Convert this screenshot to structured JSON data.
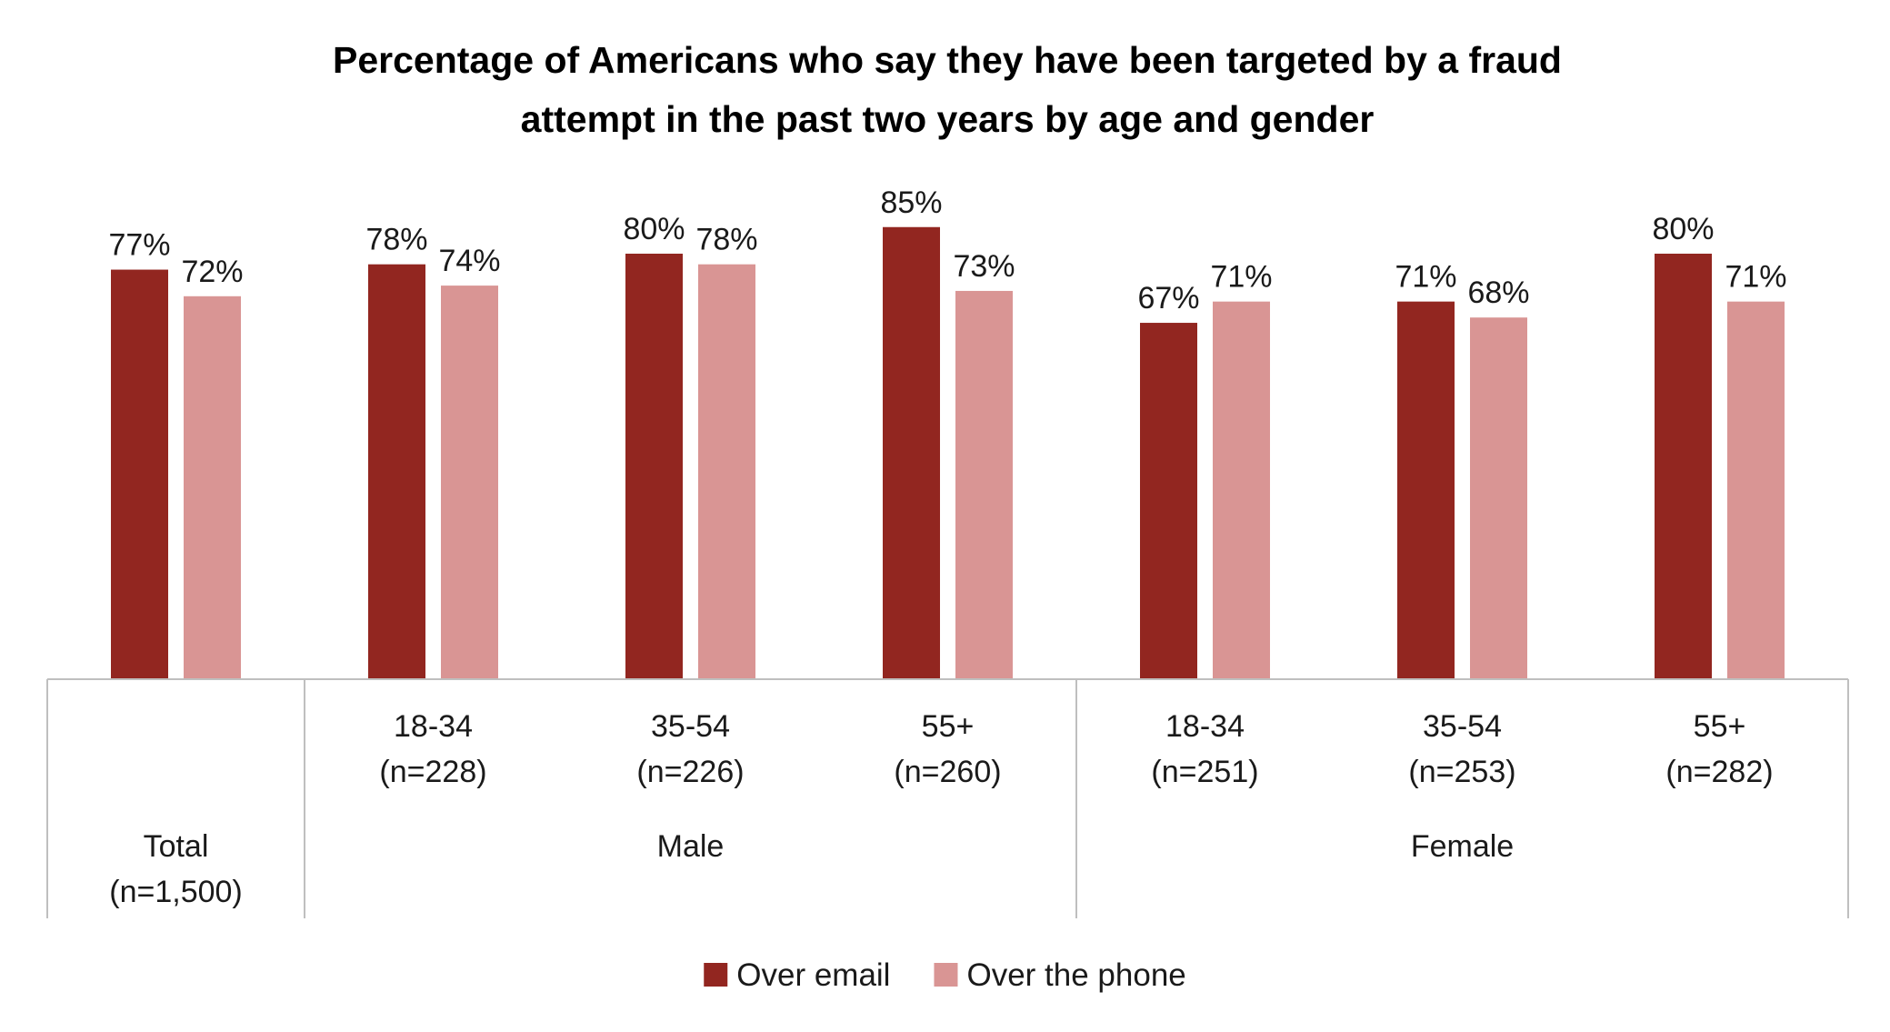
{
  "chart_data": {
    "type": "bar",
    "title_lines": [
      "Percentage of Americans who say they have been targeted by a fraud",
      "attempt in the past two years by age and gender"
    ],
    "groups": [
      {
        "label": "",
        "categories": [
          {
            "lines": [
              "Total",
              "(n=1,500)"
            ],
            "valign": "bottom"
          }
        ]
      },
      {
        "label": "Male",
        "categories": [
          {
            "lines": [
              "18-34",
              "(n=228)"
            ],
            "valign": "top"
          },
          {
            "lines": [
              "35-54",
              "(n=226)"
            ],
            "valign": "top"
          },
          {
            "lines": [
              "55+",
              "(n=260)"
            ],
            "valign": "top"
          }
        ]
      },
      {
        "label": "Female",
        "categories": [
          {
            "lines": [
              "18-34",
              "(n=251)"
            ],
            "valign": "top"
          },
          {
            "lines": [
              "35-54",
              "(n=253)"
            ],
            "valign": "top"
          },
          {
            "lines": [
              "55+",
              "(n=282)"
            ],
            "valign": "top"
          }
        ]
      }
    ],
    "series": [
      {
        "name": "Over email",
        "color": "#922620",
        "values": [
          77,
          78,
          80,
          85,
          67,
          71,
          80
        ]
      },
      {
        "name": "Over the phone",
        "color": "#D99594",
        "values": [
          72,
          74,
          78,
          73,
          71,
          68,
          71
        ]
      }
    ],
    "value_suffix": "%",
    "ylim": [
      0,
      100
    ],
    "grid": false,
    "legend_position": "bottom"
  }
}
